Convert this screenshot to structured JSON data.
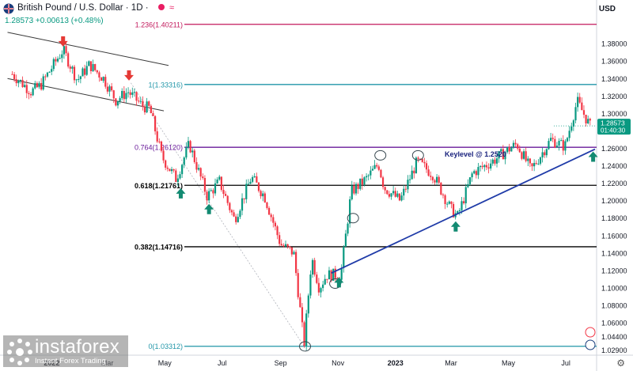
{
  "header": {
    "title": "British Pound / U.S. Dollar · 1D · ",
    "change": "1.28573 +0.00613 (+0.48%)",
    "currency": "USD"
  },
  "watermark": {
    "brand": "instaforex",
    "tagline": "Instant Forex Trading"
  },
  "chart_data": {
    "type": "candlestick",
    "symbol": "British Pound / U.S. Dollar",
    "interval": "1D",
    "last_price": "1.28573",
    "countdown": "01:40:30",
    "ylim": [
      1.0229,
      1.4137
    ],
    "y_ticks": [
      "1.38000",
      "1.36000",
      "1.34000",
      "1.32000",
      "1.30000",
      "1.28000",
      "1.26000",
      "1.24000",
      "1.22000",
      "1.20000",
      "1.18000",
      "1.16000",
      "1.14000",
      "1.12000",
      "1.10000",
      "1.08000",
      "1.06000",
      "1.04400",
      "1.02900"
    ],
    "x_ticks": [
      "2022",
      "Mar",
      "May",
      "Jul",
      "Sep",
      "Nov",
      "2023",
      "Mar",
      "May",
      "Jul"
    ],
    "price_path": [
      [
        "2021-11-20",
        1.345
      ],
      [
        "2021-12-10",
        1.325
      ],
      [
        "2021-12-20",
        1.332
      ],
      [
        "2022-01-13",
        1.373
      ],
      [
        "2022-01-28",
        1.338
      ],
      [
        "2022-02-10",
        1.356
      ],
      [
        "2022-02-25",
        1.34
      ],
      [
        "2022-03-10",
        1.315
      ],
      [
        "2022-03-23",
        1.325
      ],
      [
        "2022-04-08",
        1.308
      ],
      [
        "2022-04-15",
        1.306
      ],
      [
        "2022-04-28",
        1.25
      ],
      [
        "2022-05-13",
        1.225
      ],
      [
        "2022-05-27",
        1.265
      ],
      [
        "2022-06-15",
        1.205
      ],
      [
        "2022-06-28",
        1.222
      ],
      [
        "2022-07-14",
        1.178
      ],
      [
        "2022-08-01",
        1.227
      ],
      [
        "2022-08-15",
        1.205
      ],
      [
        "2022-09-01",
        1.15
      ],
      [
        "2022-09-15",
        1.14
      ],
      [
        "2022-09-26",
        1.035
      ],
      [
        "2022-10-04",
        1.135
      ],
      [
        "2022-10-12",
        1.1
      ],
      [
        "2022-10-20",
        1.115
      ],
      [
        "2022-11-04",
        1.115
      ],
      [
        "2022-11-15",
        1.21
      ],
      [
        "2022-12-01",
        1.225
      ],
      [
        "2022-12-14",
        1.242
      ],
      [
        "2022-12-20",
        1.215
      ],
      [
        "2023-01-06",
        1.2
      ],
      [
        "2023-01-24",
        1.245
      ],
      [
        "2023-02-10",
        1.23
      ],
      [
        "2023-03-01",
        1.19
      ],
      [
        "2023-03-08",
        1.182
      ],
      [
        "2023-03-24",
        1.232
      ],
      [
        "2023-04-14",
        1.245
      ],
      [
        "2023-04-30",
        1.258
      ],
      [
        "2023-05-10",
        1.265
      ],
      [
        "2023-05-25",
        1.235
      ],
      [
        "2023-06-15",
        1.27
      ],
      [
        "2023-06-30",
        1.262
      ],
      [
        "2023-07-13",
        1.314
      ],
      [
        "2023-07-27",
        1.285
      ]
    ],
    "fibonacci": [
      {
        "label": "1.236(1.40211)",
        "value": 1.40211,
        "color": "#c2185b"
      },
      {
        "label": "1(1.33316)",
        "value": 1.33316,
        "color": "#2196a8"
      },
      {
        "label": "0.764(1.26120)",
        "value": 1.2612,
        "color": "#6a1b9a"
      },
      {
        "label": "0.618(1.21761)",
        "value": 1.21761,
        "color": "#000000"
      },
      {
        "label": "0.382(1.14716)",
        "value": 1.14716,
        "color": "#000000"
      },
      {
        "label": "0(1.03312)",
        "value": 1.03312,
        "color": "#2196a8"
      }
    ],
    "channel": [
      {
        "from": [
          "2021-11-15",
          1.393
        ],
        "to": [
          "2022-05-05",
          1.355
        ]
      },
      {
        "from": [
          "2021-11-15",
          1.34
        ],
        "to": [
          "2022-04-30",
          1.303
        ]
      }
    ],
    "uptrend": {
      "from": [
        "2022-10-25",
        1.117
      ],
      "to": [
        "2023-08-01",
        1.259
      ]
    },
    "fib_anchor": {
      "from": [
        "2022-03-26",
        1.335
      ],
      "to": [
        "2022-09-26",
        1.033
      ]
    },
    "annotation": "Keylevel @ 1.2520",
    "down_arrows": [
      [
        "2022-01-13",
        1.383
      ],
      [
        "2022-03-24",
        1.344
      ]
    ],
    "up_arrows": [
      [
        "2022-05-18",
        1.208
      ],
      [
        "2022-06-17",
        1.19
      ],
      [
        "2022-11-02",
        1.106
      ],
      [
        "2023-03-06",
        1.17
      ],
      [
        "2023-07-30",
        1.25
      ]
    ],
    "circles": [
      [
        "2022-09-27",
        1.033
      ],
      [
        "2022-10-29",
        1.105
      ],
      [
        "2022-11-17",
        1.18
      ],
      [
        "2022-12-16",
        1.252
      ],
      [
        "2023-01-25",
        1.252
      ]
    ],
    "colors": {
      "up": "#089981",
      "down": "#f23645",
      "trend": "#1f3ba8",
      "arrow_up": "#138a72",
      "arrow_down": "#e53935"
    }
  }
}
